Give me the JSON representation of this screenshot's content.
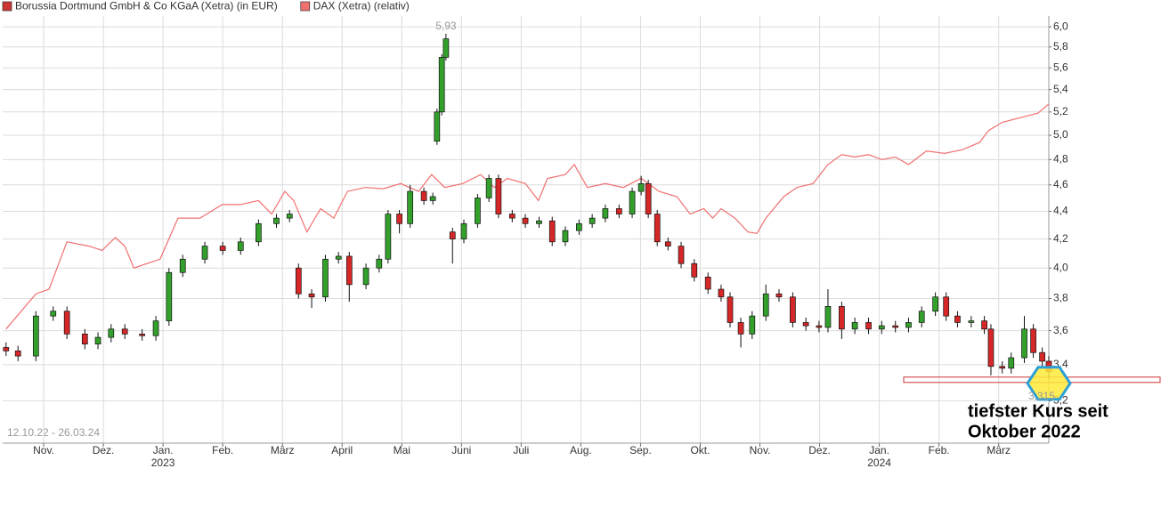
{
  "chart_data": {
    "type": "candlestick",
    "date_range": "12.10.22 - 26.03.24",
    "log_scale": true,
    "grid": true,
    "legend_position": "top-left",
    "xlim": [
      0.37,
      17.84
    ],
    "ylim": [
      2.98,
      6.11
    ],
    "xticks": [
      {
        "value": 1,
        "label": "Nov."
      },
      {
        "value": 2,
        "label": "Dez."
      },
      {
        "value": 3,
        "label": "Jan."
      },
      {
        "value": 4,
        "label": "Feb."
      },
      {
        "value": 5,
        "label": "März"
      },
      {
        "value": 6,
        "label": "April"
      },
      {
        "value": 7,
        "label": "Mai"
      },
      {
        "value": 8,
        "label": "Juni"
      },
      {
        "value": 9,
        "label": "Juli"
      },
      {
        "value": 10,
        "label": "Aug."
      },
      {
        "value": 11,
        "label": "Sep."
      },
      {
        "value": 12,
        "label": "Okt."
      },
      {
        "value": 13,
        "label": "Nov."
      },
      {
        "value": 14,
        "label": "Dez."
      },
      {
        "value": 15,
        "label": "Jan."
      },
      {
        "value": 16,
        "label": "Feb."
      },
      {
        "value": 17,
        "label": "März"
      }
    ],
    "year_ticks": [
      {
        "value": 3,
        "label": "2023"
      },
      {
        "value": 15,
        "label": "2024"
      }
    ],
    "yticks": [
      {
        "value": 3.2,
        "label": "3,2"
      },
      {
        "value": 3.4,
        "label": "3,4"
      },
      {
        "value": 3.6,
        "label": "3,6"
      },
      {
        "value": 3.8,
        "label": "3,8"
      },
      {
        "value": 4.0,
        "label": "4,0"
      },
      {
        "value": 4.2,
        "label": "4,2"
      },
      {
        "value": 4.4,
        "label": "4,4"
      },
      {
        "value": 4.6,
        "label": "4,6"
      },
      {
        "value": 4.8,
        "label": "4,8"
      },
      {
        "value": 5.0,
        "label": "5,0"
      },
      {
        "value": 5.2,
        "label": "5,2"
      },
      {
        "value": 5.4,
        "label": "5,4"
      },
      {
        "value": 5.6,
        "label": "5,6"
      },
      {
        "value": 5.8,
        "label": "5,8"
      },
      {
        "value": 6.0,
        "label": "6,0"
      }
    ],
    "high_label": {
      "value": 5.93,
      "label": "5,93"
    },
    "low_label": {
      "value": 3.315,
      "label": "3,315"
    },
    "annotation_lines": [
      "tiefster Kurs seit",
      "Oktober 2022"
    ],
    "series": [
      {
        "name": "Borussia Dortmund GmbH & Co KGaA (Xetra) (in EUR)",
        "type": "candlestick",
        "color": "#cc3333",
        "up_color": "#33a02c",
        "down_color": "#d62728",
        "x": [
          0.37,
          0.57,
          0.87,
          1.16,
          1.39,
          1.69,
          1.91,
          2.13,
          2.36,
          2.65,
          2.88,
          3.1,
          3.33,
          3.7,
          4.0,
          4.3,
          4.6,
          4.9,
          5.12,
          5.27,
          5.49,
          5.72,
          5.94,
          6.12,
          6.4,
          6.62,
          6.77,
          6.96,
          7.14,
          7.37,
          7.52,
          7.59,
          7.67,
          7.74,
          7.85,
          8.04,
          8.27,
          8.46,
          8.62,
          8.85,
          9.07,
          9.3,
          9.52,
          9.74,
          9.97,
          10.19,
          10.41,
          10.64,
          10.86,
          11.01,
          11.13,
          11.28,
          11.46,
          11.68,
          11.9,
          12.13,
          12.35,
          12.5,
          12.68,
          12.87,
          13.1,
          13.32,
          13.55,
          13.77,
          13.99,
          14.14,
          14.37,
          14.59,
          14.82,
          15.04,
          15.27,
          15.49,
          15.71,
          15.94,
          16.12,
          16.31,
          16.54,
          16.76,
          16.87,
          17.06,
          17.21,
          17.43,
          17.58,
          17.73,
          17.84
        ],
        "open": [
          3.5,
          3.48,
          3.45,
          3.69,
          3.72,
          3.58,
          3.52,
          3.56,
          3.61,
          3.58,
          3.57,
          3.66,
          3.97,
          4.06,
          4.15,
          4.12,
          4.18,
          4.31,
          4.35,
          4.0,
          3.83,
          3.81,
          4.06,
          4.08,
          3.89,
          4.0,
          4.06,
          4.38,
          4.31,
          4.55,
          4.48,
          4.95,
          5.2,
          5.7,
          4.25,
          4.2,
          4.31,
          4.5,
          4.65,
          4.38,
          4.35,
          4.31,
          4.33,
          4.18,
          4.26,
          4.31,
          4.35,
          4.42,
          4.38,
          4.55,
          4.61,
          4.38,
          4.18,
          4.15,
          4.03,
          3.94,
          3.86,
          3.81,
          3.65,
          3.58,
          3.69,
          3.83,
          3.81,
          3.65,
          3.63,
          3.62,
          3.75,
          3.61,
          3.65,
          3.61,
          3.63,
          3.62,
          3.65,
          3.72,
          3.81,
          3.69,
          3.65,
          3.66,
          3.61,
          3.39,
          3.38,
          3.44,
          3.61,
          3.47,
          3.42
        ],
        "high": [
          3.53,
          3.51,
          3.72,
          3.75,
          3.75,
          3.61,
          3.59,
          3.64,
          3.64,
          3.61,
          3.69,
          4.0,
          4.09,
          4.18,
          4.18,
          4.21,
          4.34,
          4.38,
          4.41,
          4.03,
          3.86,
          4.09,
          4.11,
          4.11,
          4.03,
          4.09,
          4.41,
          4.41,
          4.6,
          4.58,
          4.54,
          5.23,
          5.73,
          5.93,
          4.28,
          4.34,
          4.53,
          4.68,
          4.68,
          4.41,
          4.38,
          4.36,
          4.36,
          4.29,
          4.34,
          4.38,
          4.45,
          4.45,
          4.58,
          4.67,
          4.64,
          4.41,
          4.21,
          4.18,
          4.06,
          3.97,
          3.89,
          3.84,
          3.68,
          3.72,
          3.89,
          3.86,
          3.84,
          3.68,
          3.66,
          3.86,
          3.78,
          3.68,
          3.68,
          3.66,
          3.66,
          3.68,
          3.75,
          3.84,
          3.84,
          3.72,
          3.69,
          3.69,
          3.64,
          3.42,
          3.47,
          3.69,
          3.64,
          3.5,
          3.45
        ],
        "low": [
          3.45,
          3.42,
          3.42,
          3.66,
          3.55,
          3.49,
          3.49,
          3.53,
          3.55,
          3.54,
          3.54,
          3.63,
          3.94,
          4.03,
          4.09,
          4.09,
          4.15,
          4.28,
          4.32,
          3.8,
          3.74,
          3.78,
          4.03,
          3.78,
          3.86,
          3.97,
          4.03,
          4.24,
          4.28,
          4.45,
          4.45,
          4.92,
          5.17,
          5.67,
          4.03,
          4.17,
          4.28,
          4.47,
          4.35,
          4.32,
          4.28,
          4.28,
          4.15,
          4.15,
          4.23,
          4.28,
          4.32,
          4.35,
          4.35,
          4.52,
          4.35,
          4.15,
          4.12,
          4.0,
          3.91,
          3.83,
          3.78,
          3.62,
          3.5,
          3.55,
          3.66,
          3.78,
          3.62,
          3.6,
          3.59,
          3.59,
          3.55,
          3.58,
          3.58,
          3.58,
          3.59,
          3.59,
          3.62,
          3.69,
          3.66,
          3.62,
          3.62,
          3.58,
          3.34,
          3.35,
          3.35,
          3.41,
          3.44,
          3.39,
          3.315
        ],
        "close": [
          3.48,
          3.45,
          3.69,
          3.72,
          3.58,
          3.52,
          3.56,
          3.61,
          3.58,
          3.57,
          3.66,
          3.97,
          4.06,
          4.15,
          4.12,
          4.18,
          4.31,
          4.35,
          4.38,
          3.83,
          3.81,
          4.06,
          4.08,
          3.89,
          4.0,
          4.06,
          4.38,
          4.31,
          4.55,
          4.48,
          4.51,
          5.2,
          5.7,
          5.88,
          4.2,
          4.31,
          4.5,
          4.65,
          4.38,
          4.35,
          4.31,
          4.33,
          4.18,
          4.26,
          4.31,
          4.35,
          4.42,
          4.38,
          4.55,
          4.61,
          4.38,
          4.18,
          4.15,
          4.03,
          3.94,
          3.86,
          3.81,
          3.65,
          3.58,
          3.69,
          3.83,
          3.81,
          3.65,
          3.63,
          3.62,
          3.75,
          3.61,
          3.65,
          3.61,
          3.63,
          3.62,
          3.65,
          3.72,
          3.81,
          3.69,
          3.65,
          3.66,
          3.61,
          3.39,
          3.38,
          3.44,
          3.61,
          3.47,
          3.42,
          3.36
        ]
      },
      {
        "name": "DAX (Xetra) (relativ)",
        "type": "line",
        "color": "#f07070",
        "x": [
          0.37,
          0.87,
          1.09,
          1.39,
          1.76,
          1.98,
          2.2,
          2.36,
          2.51,
          2.73,
          2.95,
          3.25,
          3.62,
          3.99,
          4.29,
          4.6,
          4.82,
          5.04,
          5.19,
          5.41,
          5.64,
          5.86,
          6.09,
          6.39,
          6.69,
          6.98,
          7.28,
          7.5,
          7.72,
          8.02,
          8.32,
          8.55,
          8.77,
          9.07,
          9.29,
          9.44,
          9.74,
          9.89,
          10.11,
          10.41,
          10.71,
          11.01,
          11.31,
          11.61,
          11.83,
          12.06,
          12.21,
          12.35,
          12.58,
          12.8,
          12.95,
          13.1,
          13.4,
          13.62,
          13.89,
          14.14,
          14.37,
          14.59,
          14.82,
          15.04,
          15.27,
          15.49,
          15.79,
          16.09,
          16.39,
          16.68,
          16.83,
          17.06,
          17.36,
          17.66,
          17.84
        ],
        "values": [
          3.61,
          3.83,
          3.86,
          4.18,
          4.15,
          4.12,
          4.21,
          4.15,
          4.0,
          4.03,
          4.06,
          4.35,
          4.35,
          4.45,
          4.45,
          4.48,
          4.38,
          4.55,
          4.48,
          4.25,
          4.42,
          4.35,
          4.55,
          4.58,
          4.57,
          4.61,
          4.55,
          4.68,
          4.58,
          4.61,
          4.68,
          4.58,
          4.65,
          4.61,
          4.48,
          4.65,
          4.68,
          4.76,
          4.58,
          4.61,
          4.58,
          4.65,
          4.55,
          4.51,
          4.38,
          4.42,
          4.35,
          4.42,
          4.35,
          4.25,
          4.24,
          4.35,
          4.51,
          4.58,
          4.61,
          4.76,
          4.84,
          4.82,
          4.84,
          4.8,
          4.82,
          4.76,
          4.87,
          4.85,
          4.88,
          4.94,
          5.04,
          5.11,
          5.15,
          5.19,
          5.27
        ]
      }
    ]
  }
}
